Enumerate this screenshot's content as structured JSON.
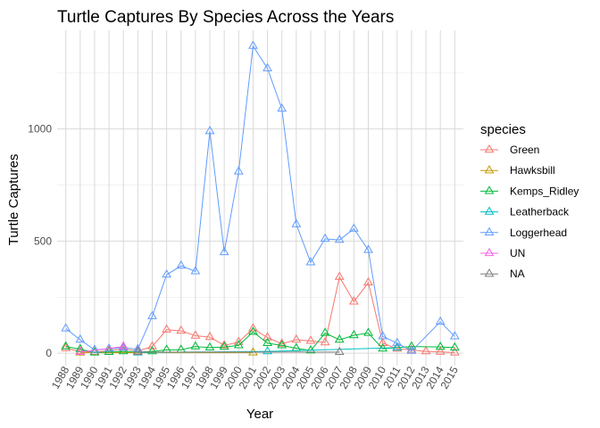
{
  "chart_data": {
    "type": "line",
    "title": "Turtle Captures By Species Across the Years",
    "xlabel": "Year",
    "ylabel": "Turtle Captures",
    "x_ticks": [
      "1988",
      "1989",
      "1990",
      "1991",
      "1992",
      "1993",
      "1994",
      "1995",
      "1996",
      "1997",
      "1998",
      "1999",
      "2000",
      "2001",
      "2002",
      "2003",
      "2004",
      "2005",
      "2006",
      "2007",
      "2008",
      "2009",
      "2010",
      "2011",
      "2012",
      "2013",
      "2014",
      "2015"
    ],
    "y_ticks": [
      0,
      500,
      1000
    ],
    "ylim": [
      -55,
      1440
    ],
    "grid": true,
    "legend": {
      "title": "species",
      "position": "right"
    },
    "series": [
      {
        "name": "Green",
        "color": "#F8766D",
        "points": [
          [
            "1988",
            22
          ],
          [
            "1989",
            8
          ],
          [
            "1990",
            5
          ],
          [
            "1991",
            12
          ],
          [
            "1992",
            18
          ],
          [
            "1993",
            10
          ],
          [
            "1994",
            30
          ],
          [
            "1995",
            105
          ],
          [
            "1996",
            100
          ],
          [
            "1997",
            78
          ],
          [
            "1998",
            72
          ],
          [
            "1999",
            35
          ],
          [
            "2000",
            50
          ],
          [
            "2001",
            110
          ],
          [
            "2002",
            70
          ],
          [
            "2003",
            42
          ],
          [
            "2004",
            60
          ],
          [
            "2005",
            55
          ],
          [
            "2006",
            48
          ],
          [
            "2007",
            340
          ],
          [
            "2008",
            230
          ],
          [
            "2009",
            315
          ],
          [
            "2010",
            45
          ],
          [
            "2011",
            20
          ],
          [
            "2012",
            15
          ],
          [
            "2013",
            8
          ],
          [
            "2014",
            6
          ],
          [
            "2015",
            3
          ]
        ]
      },
      {
        "name": "Hawksbill",
        "color": "#C49A00",
        "points": [
          [
            "1989",
            3
          ],
          [
            "2001",
            3
          ]
        ]
      },
      {
        "name": "Kemps_Ridley",
        "color": "#00BA38",
        "points": [
          [
            "1988",
            30
          ],
          [
            "1989",
            18
          ],
          [
            "1990",
            3
          ],
          [
            "1991",
            5
          ],
          [
            "1992",
            8
          ],
          [
            "1993",
            5
          ],
          [
            "1994",
            8
          ],
          [
            "1995",
            15
          ],
          [
            "1996",
            15
          ],
          [
            "1997",
            30
          ],
          [
            "1998",
            25
          ],
          [
            "1999",
            28
          ],
          [
            "2000",
            35
          ],
          [
            "2001",
            95
          ],
          [
            "2002",
            45
          ],
          [
            "2003",
            35
          ],
          [
            "2004",
            22
          ],
          [
            "2005",
            12
          ],
          [
            "2006",
            90
          ],
          [
            "2007",
            60
          ],
          [
            "2008",
            80
          ],
          [
            "2009",
            90
          ],
          [
            "2010",
            20
          ],
          [
            "2011",
            25
          ],
          [
            "2012",
            30
          ],
          [
            "2014",
            28
          ],
          [
            "2015",
            25
          ]
        ]
      },
      {
        "name": "Leatherback",
        "color": "#00BFC4",
        "points": [
          [
            "1993",
            3
          ],
          [
            "2002",
            8
          ],
          [
            "2011",
            25
          ]
        ]
      },
      {
        "name": "Loggerhead",
        "color": "#619CFF",
        "points": [
          [
            "1988",
            110
          ],
          [
            "1989",
            60
          ],
          [
            "1990",
            15
          ],
          [
            "1991",
            20
          ],
          [
            "1992",
            25
          ],
          [
            "1993",
            18
          ],
          [
            "1994",
            165
          ],
          [
            "1995",
            350
          ],
          [
            "1996",
            390
          ],
          [
            "1997",
            365
          ],
          [
            "1998",
            990
          ],
          [
            "1999",
            450
          ],
          [
            "2000",
            810
          ],
          [
            "2001",
            1370
          ],
          [
            "2002",
            1270
          ],
          [
            "2003",
            1090
          ],
          [
            "2004",
            575
          ],
          [
            "2005",
            405
          ],
          [
            "2006",
            510
          ],
          [
            "2007",
            505
          ],
          [
            "2008",
            555
          ],
          [
            "2009",
            460
          ],
          [
            "2010",
            75
          ],
          [
            "2011",
            45
          ],
          [
            "2012",
            10
          ],
          [
            "2014",
            140
          ],
          [
            "2015",
            75
          ]
        ]
      },
      {
        "name": "UN",
        "color": "#F564E3",
        "points": [
          [
            "1989",
            5
          ],
          [
            "1992",
            30
          ]
        ]
      },
      {
        "name": "NA",
        "color": "#7F7F7F",
        "points": [
          [
            "1993",
            5
          ],
          [
            "2007",
            5
          ]
        ]
      }
    ]
  }
}
